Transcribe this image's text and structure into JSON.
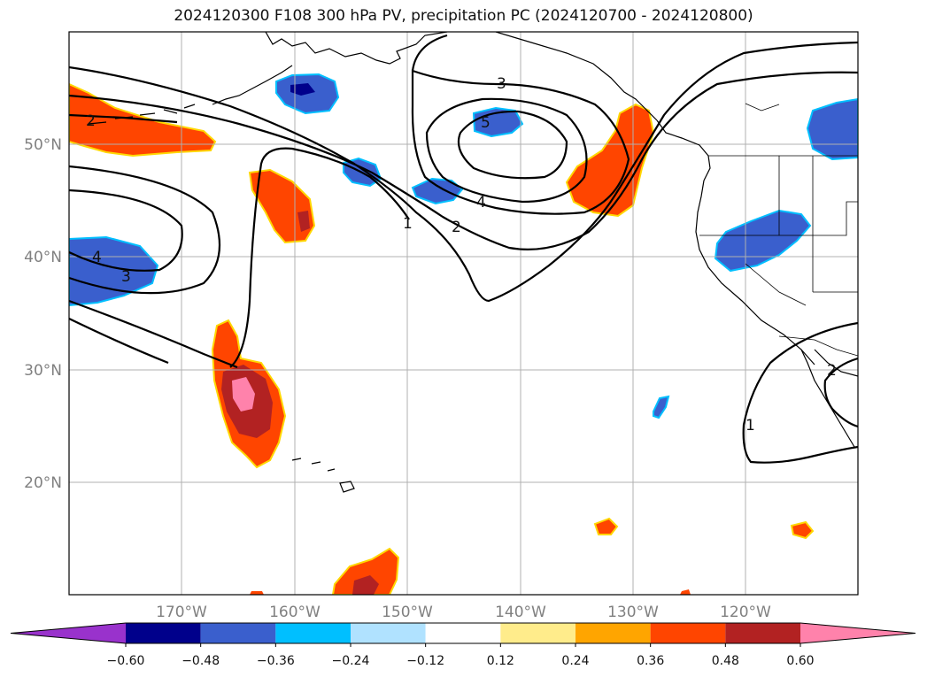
{
  "title": "2024120300 F108 300 hPa PV, precipitation PC (2024120700 - 2024120800)",
  "latitude_labels": [
    "50°N",
    "40°N",
    "30°N",
    "20°N"
  ],
  "longitude_labels": [
    "170°W",
    "160°W",
    "150°W",
    "140°W",
    "130°W",
    "120°W"
  ],
  "contour_labels": [
    "2",
    "4",
    "3",
    "1",
    "2",
    "3",
    "4",
    "5",
    "2",
    "1"
  ],
  "colorbar": {
    "colors": [
      "#9932cc",
      "#00008b",
      "#3a5fcd",
      "#00bfff",
      "#b0e2ff",
      "#ffffff",
      "#ffec8b",
      "#ffa500",
      "#ff4500",
      "#b22222",
      "#ff82ab"
    ],
    "tick_labels": [
      "−0.60",
      "−0.48",
      "−0.36",
      "−0.24",
      "−0.12",
      "0.12",
      "0.24",
      "0.36",
      "0.48",
      "0.60"
    ]
  }
}
